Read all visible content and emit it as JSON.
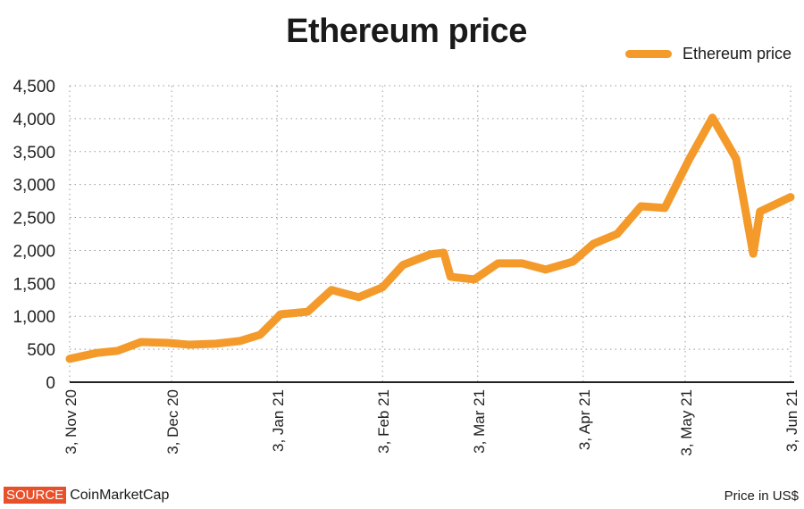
{
  "chart_data": {
    "type": "line",
    "title": "Ethereum price",
    "xlabel": "",
    "ylabel": "Price in US$",
    "ylim": [
      0,
      4500
    ],
    "yticks": [
      0,
      500,
      1000,
      1500,
      2000,
      2500,
      3000,
      3500,
      4000,
      4500
    ],
    "ytick_labels": [
      "0",
      "500",
      "1,000",
      "1,500",
      "2,000",
      "2,500",
      "3,000",
      "3,500",
      "4,000",
      "4,500"
    ],
    "x_unit": "days since 3 Nov 2020",
    "xlim": [
      0,
      212
    ],
    "xticks": [
      0,
      30,
      61,
      92,
      120,
      151,
      181,
      212
    ],
    "xtick_labels": [
      "3, Nov 20",
      "3, Dec 20",
      "3, Jan 21",
      "3, Feb 21",
      "3, Mar 21",
      "3, Apr 21",
      "3, May 21",
      "3, Jun 21"
    ],
    "grid": true,
    "legend": "top-right",
    "series": [
      {
        "name": "Ethereum price",
        "color": "#F39A2B",
        "x": [
          0,
          8,
          14,
          21,
          29,
          35,
          43,
          50,
          56,
          62,
          70,
          77,
          85,
          92,
          98,
          106,
          110,
          112,
          119,
          126,
          133,
          140,
          148,
          154,
          161,
          168,
          175,
          182,
          189,
          196,
          201,
          203,
          212
        ],
        "y": [
          355,
          445,
          475,
          610,
          597,
          570,
          585,
          625,
          720,
          1030,
          1070,
          1400,
          1290,
          1440,
          1780,
          1940,
          1965,
          1600,
          1560,
          1805,
          1805,
          1710,
          1830,
          2100,
          2250,
          2670,
          2645,
          3365,
          4015,
          3390,
          1950,
          2590,
          2810
        ]
      }
    ]
  },
  "footer": {
    "source_label": "SOURCE",
    "source_name": "CoinMarketCap",
    "unit_note": "Price in US$"
  }
}
